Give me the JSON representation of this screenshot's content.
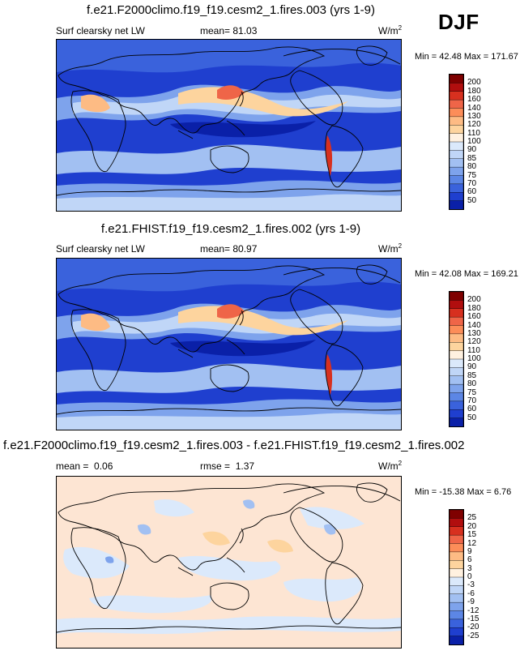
{
  "season": "DJF",
  "chart_data": [
    {
      "type": "heatmap",
      "title": "f.e21.F2000climo.f19_f19.cesm2_1.fires.003 (yrs 1-9)",
      "variable": "Surf clearsky net LW",
      "mean_label": "mean=",
      "mean": "81.03",
      "units_base": "W/m",
      "units_exp": "2",
      "min_label": "Min =",
      "min": "42.48",
      "max_label": "Max =",
      "max": "171.67",
      "colorbar": {
        "labels": [
          "200",
          "180",
          "160",
          "140",
          "130",
          "120",
          "110",
          "100",
          "90",
          "85",
          "80",
          "75",
          "70",
          "60",
          "50"
        ],
        "colors": [
          "#7f0000",
          "#b10e0e",
          "#d7301f",
          "#ef6548",
          "#fc8d59",
          "#fdbb84",
          "#fdd49e",
          "#fff1e0",
          "#dbe9fb",
          "#c0d6f7",
          "#a2c0f2",
          "#7ea3ec",
          "#5c86e5",
          "#3a62dc",
          "#1f3fcf",
          "#0a20a8"
        ]
      }
    },
    {
      "type": "heatmap",
      "title": "f.e21.FHIST.f19_f19.cesm2_1.fires.002 (yrs 1-9)",
      "variable": "Surf clearsky net LW",
      "mean_label": "mean=",
      "mean": "80.97",
      "units_base": "W/m",
      "units_exp": "2",
      "min_label": "Min =",
      "min": "42.08",
      "max_label": "Max =",
      "max": "169.21",
      "colorbar": {
        "labels": [
          "200",
          "180",
          "160",
          "140",
          "130",
          "120",
          "110",
          "100",
          "90",
          "85",
          "80",
          "75",
          "70",
          "60",
          "50"
        ],
        "colors": [
          "#7f0000",
          "#b10e0e",
          "#d7301f",
          "#ef6548",
          "#fc8d59",
          "#fdbb84",
          "#fdd49e",
          "#fff1e0",
          "#dbe9fb",
          "#c0d6f7",
          "#a2c0f2",
          "#7ea3ec",
          "#5c86e5",
          "#3a62dc",
          "#1f3fcf",
          "#0a20a8"
        ]
      }
    },
    {
      "type": "heatmap",
      "title": "f.e21.F2000climo.f19_f19.cesm2_1.fires.003 - f.e21.FHIST.f19_f19.cesm2_1.fires.002",
      "mean_label": "mean =",
      "mean": "0.06",
      "rmse_label": "rmse =",
      "rmse": "1.37",
      "units_base": "W/m",
      "units_exp": "2",
      "min_label": "Min =",
      "min": "-15.38",
      "max_label": "Max =",
      "max": "6.76",
      "colorbar": {
        "labels": [
          "25",
          "20",
          "15",
          "12",
          "9",
          "6",
          "3",
          "0",
          "-3",
          "-6",
          "-9",
          "-12",
          "-15",
          "-20",
          "-25"
        ],
        "colors": [
          "#7f0000",
          "#b10e0e",
          "#d7301f",
          "#ef6548",
          "#fc8d59",
          "#fdbb84",
          "#fdd49e",
          "#fff1e0",
          "#dbe9fb",
          "#c0d6f7",
          "#a2c0f2",
          "#7ea3ec",
          "#5c86e5",
          "#3a62dc",
          "#1f3fcf",
          "#0a20a8"
        ]
      }
    }
  ]
}
